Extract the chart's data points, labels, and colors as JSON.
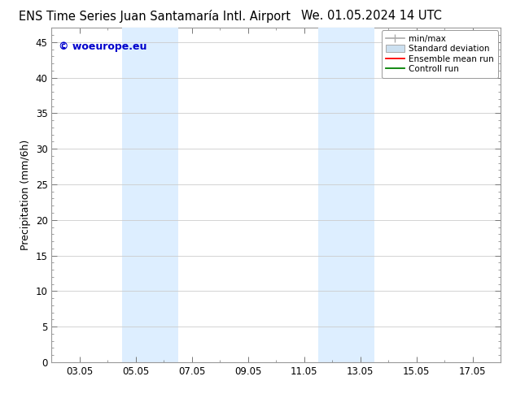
{
  "title_left": "ENS Time Series Juan Santamaría Intl. Airport",
  "title_right": "We. 01.05.2024 14 UTC",
  "ylabel": "Precipitation (mm/6h)",
  "ylim": [
    0,
    47
  ],
  "yticks": [
    0,
    5,
    10,
    15,
    20,
    25,
    30,
    35,
    40,
    45
  ],
  "xtick_labels": [
    "03.05",
    "05.05",
    "07.05",
    "09.05",
    "11.05",
    "13.05",
    "15.05",
    "17.05"
  ],
  "xtick_positions": [
    2.0,
    4.0,
    6.0,
    8.0,
    10.0,
    12.0,
    14.0,
    16.0
  ],
  "xlim": [
    1.0,
    17.0
  ],
  "shaded_regions": [
    {
      "xmin": 3.5,
      "xmax": 5.5
    },
    {
      "xmin": 10.5,
      "xmax": 12.5
    }
  ],
  "shade_color": "#ddeeff",
  "legend_items": [
    {
      "label": "min/max",
      "color": "#aaaaaa"
    },
    {
      "label": "Standard deviation",
      "color": "#cce0f0"
    },
    {
      "label": "Ensemble mean run",
      "color": "#ff0000"
    },
    {
      "label": "Controll run",
      "color": "#008000"
    }
  ],
  "watermark_text": "© woeurope.eu",
  "watermark_color": "#0000cc",
  "background_color": "#ffffff",
  "grid_color": "#cccccc",
  "title_fontsize": 10.5,
  "axis_fontsize": 9,
  "tick_fontsize": 8.5
}
